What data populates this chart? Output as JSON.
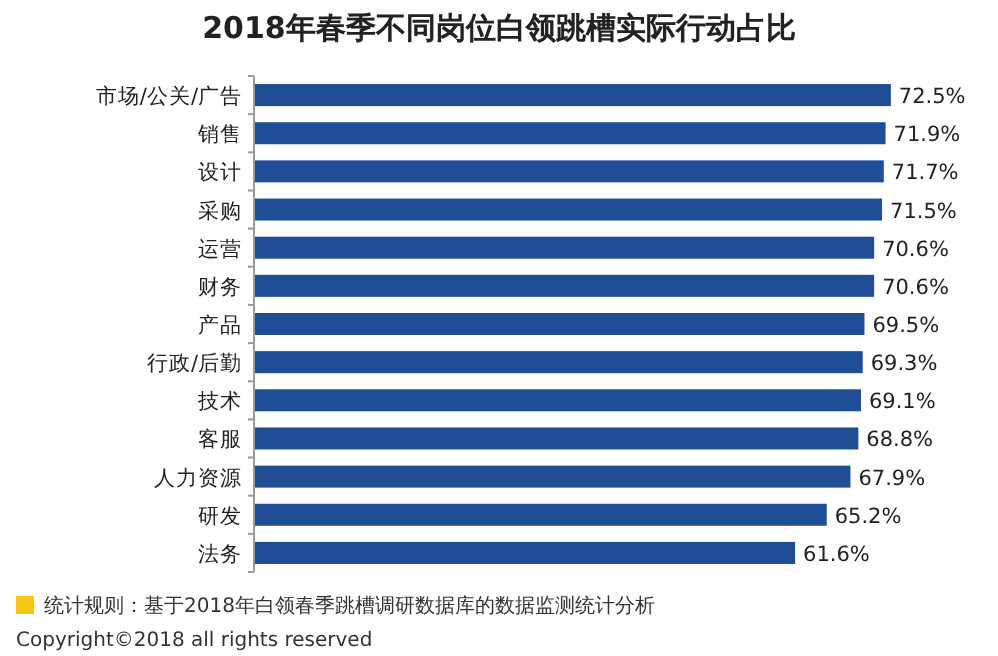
{
  "chart_data": {
    "type": "bar",
    "orientation": "horizontal",
    "title": "2018年春季不同岗位白领跳槽实际行动占比",
    "categories": [
      "市场/公关/广告",
      "销售",
      "设计",
      "采购",
      "运营",
      "财务",
      "产品",
      "行政/后勤",
      "技术",
      "客服",
      "人力资源",
      "研发",
      "法务"
    ],
    "values": [
      72.5,
      71.9,
      71.7,
      71.5,
      70.6,
      70.6,
      69.5,
      69.3,
      69.1,
      68.8,
      67.9,
      65.2,
      61.6
    ],
    "value_labels": [
      "72.5%",
      "71.9%",
      "71.7%",
      "71.5%",
      "70.6%",
      "70.6%",
      "69.5%",
      "69.3%",
      "69.1%",
      "68.8%",
      "67.9%",
      "65.2%",
      "61.6%"
    ],
    "color": "#1f4e96",
    "annotations": [
      "统计规则：基于2018年白领春季跳槽调研数据库的数据监测统计分析",
      "Copyright©2018 all rights reserved"
    ]
  }
}
